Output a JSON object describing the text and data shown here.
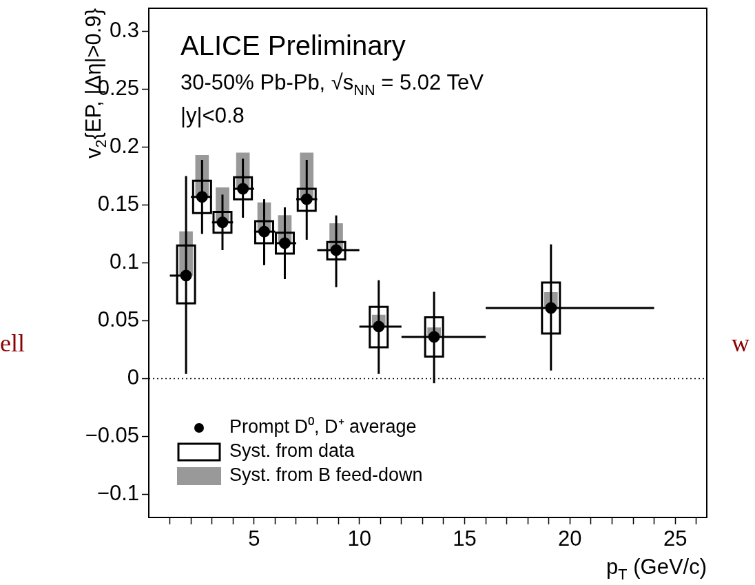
{
  "chart_data": {
    "type": "scatter",
    "xlabel": "p$_{T}$ (GeV/c)",
    "ylabel": "v$_{2}${EP, |Δη|>0.9}",
    "annotations": [
      "ALICE Preliminary",
      "30-50% Pb-Pb, √s$_{NN}$ = 5.02 TeV",
      "|y|<0.8",
      "ell",
      "w"
    ],
    "xlim": [
      0,
      26.5
    ],
    "ylim": [
      -0.12,
      0.32
    ],
    "xticks": [
      {
        "value": 1,
        "label": null
      },
      {
        "value": 2,
        "label": null
      },
      {
        "value": 3,
        "label": null
      },
      {
        "value": 4,
        "label": null
      },
      5,
      {
        "value": 6,
        "label": null
      },
      {
        "value": 7,
        "label": null
      },
      {
        "value": 8,
        "label": null
      },
      {
        "value": 9,
        "label": null
      },
      10,
      {
        "value": 11,
        "label": null
      },
      {
        "value": 12,
        "label": null
      },
      {
        "value": 13,
        "label": null
      },
      {
        "value": 14,
        "label": null
      },
      15,
      {
        "value": 16,
        "label": null
      },
      {
        "value": 17,
        "label": null
      },
      {
        "value": 18,
        "label": null
      },
      {
        "value": 19,
        "label": null
      },
      20,
      {
        "value": 21,
        "label": null
      },
      {
        "value": 22,
        "label": null
      },
      {
        "value": 23,
        "label": null
      },
      {
        "value": 24,
        "label": null
      },
      25,
      {
        "value": 26,
        "label": null
      }
    ],
    "yticks": [
      {
        "value": -0.1,
        "label": "−0.1"
      },
      {
        "value": -0.05,
        "label": "−0.05"
      },
      0,
      0.05,
      0.1,
      0.15,
      0.2,
      0.25,
      0.3
    ],
    "ref_lines": [
      {
        "axis": "y",
        "value": 0,
        "line_style": "dotted",
        "color": "#000000"
      }
    ],
    "legend": "bottom left",
    "marker": "circle",
    "series": [
      {
        "type": "bar",
        "name": "Syst. from B feed-down",
        "color": "#999999",
        "x": [
          1.77,
          2.53,
          3.5,
          4.47,
          5.48,
          6.46,
          7.5,
          8.9,
          10.92,
          13.55,
          19.1
        ],
        "base": [
          0.089,
          0.157,
          0.135,
          0.164,
          0.127,
          0.117,
          0.155,
          0.111,
          0.045,
          0.036,
          0.061
        ],
        "values": [
          0.038,
          0.036,
          0.03,
          0.031,
          0.025,
          0.024,
          0.04,
          0.023,
          0.01,
          0.008,
          0.0135
        ]
      },
      {
        "type": "bar",
        "name": "Syst. from data",
        "color": "#000000",
        "line_style": "solid",
        "x": [
          1.77,
          2.53,
          3.5,
          4.47,
          5.48,
          6.46,
          7.5,
          8.9,
          10.92,
          13.55,
          19.1
        ],
        "base": [
          0.065,
          0.143,
          0.126,
          0.155,
          0.117,
          0.108,
          0.145,
          0.103,
          0.027,
          0.019,
          0.039
        ],
        "values": [
          0.05,
          0.028,
          0.018,
          0.019,
          0.019,
          0.018,
          0.019,
          0.015,
          0.035,
          0.034,
          0.044
        ]
      },
      {
        "name": "Prompt D⁰, D⁺ average",
        "color": "#000000",
        "x": [
          1.77,
          2.53,
          3.5,
          4.47,
          5.48,
          6.46,
          7.5,
          8.9,
          10.92,
          13.55,
          19.1
        ],
        "values": [
          0.089,
          0.157,
          0.135,
          0.164,
          0.127,
          0.117,
          0.155,
          0.111,
          0.045,
          0.036,
          0.061
        ],
        "errors": [
          [
            0.004,
            0.175
          ],
          [
            0.125,
            0.189
          ],
          [
            0.111,
            0.159
          ],
          [
            0.139,
            0.19
          ],
          [
            0.098,
            0.155
          ],
          [
            0.086,
            0.148
          ],
          [
            0.12,
            0.189
          ],
          [
            0.079,
            0.141
          ],
          [
            0.004,
            0.085
          ],
          [
            -0.004,
            0.075
          ],
          [
            0.007,
            0.116
          ]
        ],
        "xerrors": [
          [
            1,
            2
          ],
          [
            2,
            3
          ],
          [
            3,
            4
          ],
          [
            4,
            5
          ],
          [
            5,
            6
          ],
          [
            6,
            7
          ],
          [
            7,
            8
          ],
          [
            8,
            10
          ],
          [
            10,
            12
          ],
          [
            12,
            16
          ],
          [
            16,
            24
          ]
        ]
      }
    ]
  }
}
